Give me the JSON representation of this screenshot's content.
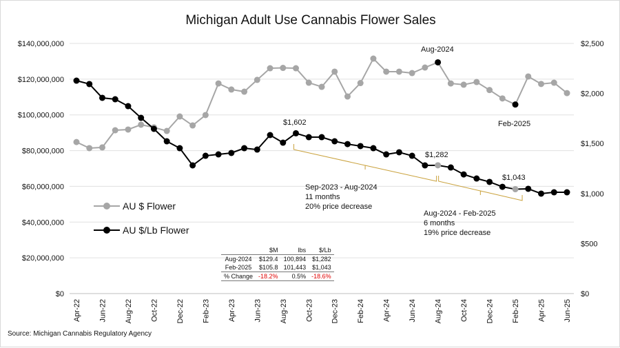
{
  "chart_data": {
    "type": "line",
    "title": "Michigan Adult Use Cannabis Flower Sales",
    "source": "Source: Michigan Cannabis Regulatory Agency",
    "x": [
      "Apr-22",
      "May-22",
      "Jun-22",
      "Jul-22",
      "Aug-22",
      "Sep-22",
      "Oct-22",
      "Nov-22",
      "Dec-22",
      "Jan-23",
      "Feb-23",
      "Mar-23",
      "Apr-23",
      "May-23",
      "Jun-23",
      "Jul-23",
      "Aug-23",
      "Sep-23",
      "Oct-23",
      "Nov-23",
      "Dec-23",
      "Jan-24",
      "Feb-24",
      "Mar-24",
      "Apr-24",
      "May-24",
      "Jun-24",
      "Jul-24",
      "Aug-24",
      "Sep-24",
      "Oct-24",
      "Nov-24",
      "Dec-24",
      "Jan-25",
      "Feb-25",
      "Mar-25",
      "Apr-25",
      "May-25",
      "Jun-25"
    ],
    "x_tick_labels": [
      "Apr-22",
      "Jun-22",
      "Aug-22",
      "Oct-22",
      "Dec-22",
      "Feb-23",
      "Apr-23",
      "Jun-23",
      "Aug-23",
      "Oct-23",
      "Dec-23",
      "Feb-24",
      "Apr-24",
      "Jun-24",
      "Aug-24",
      "Oct-24",
      "Dec-24",
      "Feb-25",
      "Apr-25",
      "Jun-25"
    ],
    "y_left": {
      "ylim": [
        0,
        140000000
      ],
      "ticks": [
        "$0",
        "$20,000,000",
        "$40,000,000",
        "$60,000,000",
        "$80,000,000",
        "$100,000,000",
        "$120,000,000",
        "$140,000,000"
      ]
    },
    "y_right": {
      "ylim": [
        0,
        2500
      ],
      "ticks": [
        "$0",
        "$500",
        "$1,000",
        "$1,500",
        "$2,000",
        "$2,500"
      ]
    },
    "grid": true,
    "legend_placement": "left-middle",
    "series": [
      {
        "name": "AU $ Flower",
        "axis": "left",
        "color": "#a6a6a6",
        "values": [
          84.8,
          81.4,
          81.8,
          91.4,
          91.8,
          94.5,
          93.0,
          91.0,
          99.1,
          94.1,
          99.9,
          117.6,
          114.2,
          113.0,
          119.6,
          126.1,
          126.3,
          126.1,
          118.0,
          115.7,
          124.2,
          110.3,
          117.8,
          131.5,
          124.2,
          124.2,
          123.4,
          126.5,
          129.4,
          117.6,
          116.9,
          118.4,
          113.9,
          109.2,
          105.8,
          121.5,
          117.3,
          118.0,
          112.2
        ],
        "unit_multiplier": 1000000
      },
      {
        "name": "AU $/Lb Flower",
        "axis": "right",
        "color": "#000000",
        "values": [
          2128,
          2094,
          1956,
          1942,
          1873,
          1756,
          1646,
          1522,
          1453,
          1281,
          1377,
          1391,
          1405,
          1453,
          1439,
          1584,
          1508,
          1602,
          1563,
          1563,
          1522,
          1494,
          1474,
          1453,
          1391,
          1412,
          1377,
          1281,
          1282,
          1260,
          1191,
          1150,
          1116,
          1067,
          1043,
          1047,
          999,
          1012,
          1012
        ]
      }
    ],
    "annotations": {
      "aug2024": "Aug-2024",
      "feb2025": "Feb-2025",
      "p1602": "$1,602",
      "p1282": "$1,282",
      "p1043": "$1,043",
      "brace1": [
        "Sep-2023 - Aug-2024",
        "11 months",
        "20% price decrease"
      ],
      "brace2": [
        "Aug-2024 - Feb-2025",
        "6 months",
        "19% price decrease"
      ]
    },
    "table": {
      "headers": [
        "",
        "$M",
        "lbs",
        "$/Lb"
      ],
      "rows": [
        [
          "Aug-2024",
          "$129.4",
          "100,894",
          "$1,282"
        ],
        [
          "Feb-2025",
          "$105.8",
          "101,443",
          "$1,043"
        ],
        [
          "% Change",
          "-18.2%",
          "0.5%",
          "-18.6%"
        ]
      ]
    }
  }
}
